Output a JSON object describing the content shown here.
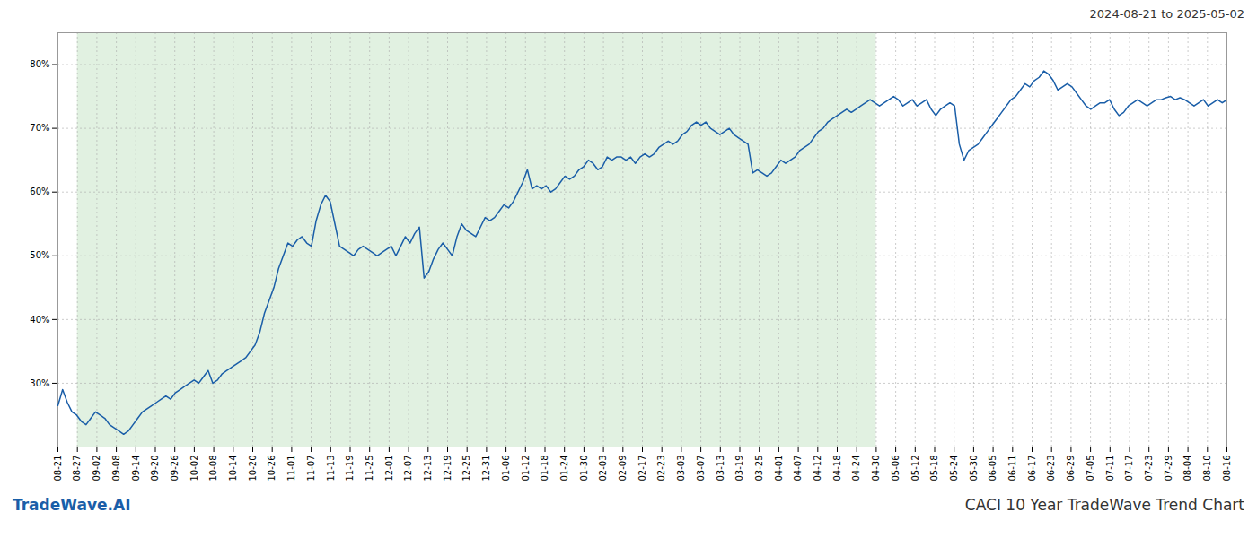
{
  "chart_data": {
    "type": "line",
    "title": "CACI 10 Year TradeWave Trend Chart",
    "subtitle": "2024-08-21 to 2025-05-02",
    "annotations": [
      {
        "text": "TradeWave.AI",
        "color": "#1a5ea8"
      }
    ],
    "color": "#1a5ea8",
    "grid": true,
    "region": {
      "x0": 4.15,
      "x1": 174.3,
      "color": "#c8e6c8"
    },
    "xlim": [
      0,
      249
    ],
    "xticks": [
      {
        "value": 0,
        "label": "08-21"
      },
      {
        "value": 4.15,
        "label": "08-27"
      },
      {
        "value": 8.3,
        "label": "09-02"
      },
      {
        "value": 12.45,
        "label": "09-08"
      },
      {
        "value": 16.6,
        "label": "09-14"
      },
      {
        "value": 20.75,
        "label": "09-20"
      },
      {
        "value": 24.9,
        "label": "09-26"
      },
      {
        "value": 29.05,
        "label": "10-02"
      },
      {
        "value": 33.2,
        "label": "10-08"
      },
      {
        "value": 37.35,
        "label": "10-14"
      },
      {
        "value": 41.5,
        "label": "10-20"
      },
      {
        "value": 45.65,
        "label": "10-26"
      },
      {
        "value": 49.8,
        "label": "11-01"
      },
      {
        "value": 53.95,
        "label": "11-07"
      },
      {
        "value": 58.1,
        "label": "11-13"
      },
      {
        "value": 62.25,
        "label": "11-19"
      },
      {
        "value": 66.4,
        "label": "11-25"
      },
      {
        "value": 70.55,
        "label": "12-01"
      },
      {
        "value": 74.7,
        "label": "12-07"
      },
      {
        "value": 78.85,
        "label": "12-13"
      },
      {
        "value": 83,
        "label": "12-19"
      },
      {
        "value": 87.15,
        "label": "12-25"
      },
      {
        "value": 91.3,
        "label": "12-31"
      },
      {
        "value": 95.45,
        "label": "01-06"
      },
      {
        "value": 99.6,
        "label": "01-12"
      },
      {
        "value": 103.75,
        "label": "01-18"
      },
      {
        "value": 107.9,
        "label": "01-24"
      },
      {
        "value": 112.05,
        "label": "01-30"
      },
      {
        "value": 116.2,
        "label": "02-03"
      },
      {
        "value": 120.35,
        "label": "02-09"
      },
      {
        "value": 124.5,
        "label": "02-17"
      },
      {
        "value": 128.65,
        "label": "02-23"
      },
      {
        "value": 132.8,
        "label": "03-03"
      },
      {
        "value": 136.95,
        "label": "03-07"
      },
      {
        "value": 141.1,
        "label": "03-13"
      },
      {
        "value": 145.25,
        "label": "03-19"
      },
      {
        "value": 149.4,
        "label": "03-25"
      },
      {
        "value": 153.55,
        "label": "04-01"
      },
      {
        "value": 157.7,
        "label": "04-07"
      },
      {
        "value": 161.85,
        "label": "04-12"
      },
      {
        "value": 166,
        "label": "04-18"
      },
      {
        "value": 170.15,
        "label": "04-24"
      },
      {
        "value": 174.3,
        "label": "04-30"
      },
      {
        "value": 178.45,
        "label": "05-06"
      },
      {
        "value": 182.6,
        "label": "05-12"
      },
      {
        "value": 186.75,
        "label": "05-18"
      },
      {
        "value": 190.9,
        "label": "05-24"
      },
      {
        "value": 195.05,
        "label": "05-30"
      },
      {
        "value": 199.2,
        "label": "06-05"
      },
      {
        "value": 203.35,
        "label": "06-11"
      },
      {
        "value": 207.5,
        "label": "06-17"
      },
      {
        "value": 211.65,
        "label": "06-23"
      },
      {
        "value": 215.8,
        "label": "06-29"
      },
      {
        "value": 219.95,
        "label": "07-05"
      },
      {
        "value": 224.1,
        "label": "07-11"
      },
      {
        "value": 228.25,
        "label": "07-17"
      },
      {
        "value": 232.4,
        "label": "07-23"
      },
      {
        "value": 236.55,
        "label": "07-29"
      },
      {
        "value": 240.7,
        "label": "08-04"
      },
      {
        "value": 244.85,
        "label": "08-10"
      },
      {
        "value": 249,
        "label": "08-16"
      }
    ],
    "ylim": [
      20,
      85
    ],
    "yticks": [
      {
        "value": 30,
        "label": "30%"
      },
      {
        "value": 40,
        "label": "40%"
      },
      {
        "value": 50,
        "label": "50%"
      },
      {
        "value": 60,
        "label": "60%"
      },
      {
        "value": 70,
        "label": "70%"
      },
      {
        "value": 80,
        "label": "80%"
      }
    ],
    "x": [
      0,
      1,
      2,
      3,
      4,
      5,
      6,
      7,
      8,
      9,
      10,
      11,
      12,
      13,
      14,
      15,
      16,
      17,
      18,
      19,
      20,
      21,
      22,
      23,
      24,
      25,
      26,
      27,
      28,
      29,
      30,
      31,
      32,
      33,
      34,
      35,
      36,
      37,
      38,
      39,
      40,
      41,
      42,
      43,
      44,
      45,
      46,
      47,
      48,
      49,
      50,
      51,
      52,
      53,
      54,
      55,
      56,
      57,
      58,
      59,
      60,
      61,
      62,
      63,
      64,
      65,
      66,
      67,
      68,
      69,
      70,
      71,
      72,
      73,
      74,
      75,
      76,
      77,
      78,
      79,
      80,
      81,
      82,
      83,
      84,
      85,
      86,
      87,
      88,
      89,
      90,
      91,
      92,
      93,
      94,
      95,
      96,
      97,
      98,
      99,
      100,
      101,
      102,
      103,
      104,
      105,
      106,
      107,
      108,
      109,
      110,
      111,
      112,
      113,
      114,
      115,
      116,
      117,
      118,
      119,
      120,
      121,
      122,
      123,
      124,
      125,
      126,
      127,
      128,
      129,
      130,
      131,
      132,
      133,
      134,
      135,
      136,
      137,
      138,
      139,
      140,
      141,
      142,
      143,
      144,
      145,
      146,
      147,
      148,
      149,
      150,
      151,
      152,
      153,
      154,
      155,
      156,
      157,
      158,
      159,
      160,
      161,
      162,
      163,
      164,
      165,
      166,
      167,
      168,
      169,
      170,
      171,
      172,
      173,
      174,
      175,
      176,
      177,
      178,
      179,
      180,
      181,
      182,
      183,
      184,
      185,
      186,
      187,
      188,
      189,
      190,
      191,
      192,
      193,
      194,
      195,
      196,
      197,
      198,
      199,
      200,
      201,
      202,
      203,
      204,
      205,
      206,
      207,
      208,
      209,
      210,
      211,
      212,
      213,
      214,
      215,
      216,
      217,
      218,
      219,
      220,
      221,
      222,
      223,
      224,
      225,
      226,
      227,
      228,
      229,
      230,
      231,
      232,
      233,
      234,
      235,
      236,
      237,
      238,
      239,
      240,
      241,
      242,
      243,
      244,
      245,
      246,
      247,
      248,
      249
    ],
    "values": [
      26.5,
      29.0,
      27.0,
      25.5,
      25.0,
      24.0,
      23.5,
      24.5,
      25.5,
      25.0,
      24.5,
      23.5,
      23.0,
      22.5,
      22.0,
      22.5,
      23.5,
      24.5,
      25.5,
      26.0,
      26.5,
      27.0,
      27.5,
      28.0,
      27.5,
      28.5,
      29.0,
      29.5,
      30.0,
      30.5,
      30.0,
      31.0,
      32.0,
      30.0,
      30.5,
      31.5,
      32.0,
      32.5,
      33.0,
      33.5,
      34.0,
      35.0,
      36.0,
      38.0,
      41.0,
      43.0,
      45.0,
      48.0,
      50.0,
      52.0,
      51.5,
      52.5,
      53.0,
      52.0,
      51.5,
      55.5,
      58.0,
      59.5,
      58.5,
      55.0,
      51.5,
      51.0,
      50.5,
      50.0,
      51.0,
      51.5,
      51.0,
      50.5,
      50.0,
      50.5,
      51.0,
      51.5,
      50.0,
      51.5,
      53.0,
      52.0,
      53.5,
      54.5,
      46.5,
      47.5,
      49.5,
      51.0,
      52.0,
      51.0,
      50.0,
      53.0,
      55.0,
      54.0,
      53.5,
      53.0,
      54.5,
      56.0,
      55.5,
      56.0,
      57.0,
      58.0,
      57.5,
      58.5,
      60.0,
      61.5,
      63.5,
      60.5,
      61.0,
      60.5,
      61.0,
      60.0,
      60.5,
      61.5,
      62.5,
      62.0,
      62.5,
      63.5,
      64.0,
      65.0,
      64.5,
      63.5,
      64.0,
      65.5,
      65.0,
      65.5,
      65.5,
      65.0,
      65.5,
      64.5,
      65.5,
      66.0,
      65.5,
      66.0,
      67.0,
      67.5,
      68.0,
      67.5,
      68.0,
      69.0,
      69.5,
      70.5,
      71.0,
      70.5,
      71.0,
      70.0,
      69.5,
      69.0,
      69.5,
      70.0,
      69.0,
      68.5,
      68.0,
      67.5,
      63.0,
      63.5,
      63.0,
      62.5,
      63.0,
      64.0,
      65.0,
      64.5,
      65.0,
      65.5,
      66.5,
      67.0,
      67.5,
      68.5,
      69.5,
      70.0,
      71.0,
      71.5,
      72.0,
      72.5,
      73.0,
      72.5,
      73.0,
      73.5,
      74.0,
      74.5,
      74.0,
      73.5,
      74.0,
      74.5,
      75.0,
      74.5,
      73.5,
      74.0,
      74.5,
      73.5,
      74.0,
      74.5,
      73.0,
      72.0,
      73.0,
      73.5,
      74.0,
      73.5,
      67.5,
      65.0,
      66.5,
      67.0,
      67.5,
      68.5,
      69.5,
      70.5,
      71.5,
      72.5,
      73.5,
      74.5,
      75.0,
      76.0,
      77.0,
      76.5,
      77.5,
      78.0,
      79.0,
      78.5,
      77.5,
      76.0,
      76.5,
      77.0,
      76.5,
      75.5,
      74.5,
      73.5,
      73.0,
      73.5,
      74.0,
      74.0,
      74.5,
      73.0,
      72.0,
      72.5,
      73.5,
      74.0,
      74.5,
      74.0,
      73.5,
      74.0,
      74.5,
      74.5,
      74.8,
      75.0,
      74.5,
      74.8,
      74.5,
      74.0,
      73.5,
      74.0,
      74.5,
      73.5,
      74.0,
      74.5,
      74.0,
      74.5
    ]
  }
}
